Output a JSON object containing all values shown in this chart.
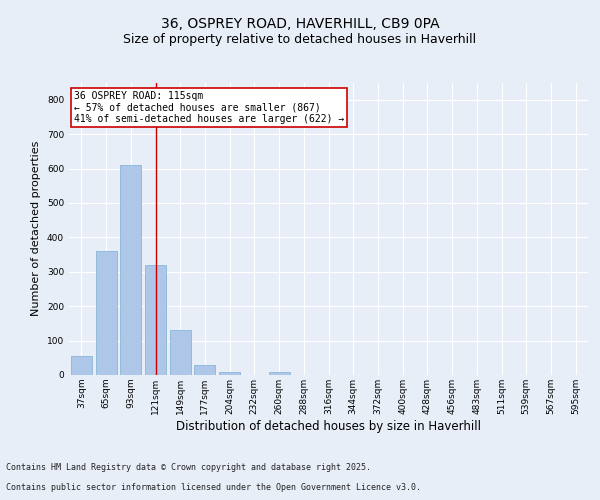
{
  "title_line1": "36, OSPREY ROAD, HAVERHILL, CB9 0PA",
  "title_line2": "Size of property relative to detached houses in Haverhill",
  "xlabel": "Distribution of detached houses by size in Haverhill",
  "ylabel": "Number of detached properties",
  "categories": [
    "37sqm",
    "65sqm",
    "93sqm",
    "121sqm",
    "149sqm",
    "177sqm",
    "204sqm",
    "232sqm",
    "260sqm",
    "288sqm",
    "316sqm",
    "344sqm",
    "372sqm",
    "400sqm",
    "428sqm",
    "456sqm",
    "483sqm",
    "511sqm",
    "539sqm",
    "567sqm",
    "595sqm"
  ],
  "values": [
    55,
    360,
    610,
    320,
    130,
    30,
    10,
    0,
    8,
    0,
    0,
    0,
    0,
    0,
    0,
    0,
    0,
    0,
    0,
    0,
    0
  ],
  "bar_color": "#aec6e8",
  "bar_edge_color": "#7aafd4",
  "background_color": "#e8eef8",
  "plot_bg_color": "#e8eef8",
  "vline_x_index": 3,
  "vline_color": "#cc0000",
  "annotation_text": "36 OSPREY ROAD: 115sqm\n← 57% of detached houses are smaller (867)\n41% of semi-detached houses are larger (622) →",
  "annotation_box_color": "#ffffff",
  "annotation_box_edge": "#cc0000",
  "ylim": [
    0,
    850
  ],
  "yticks": [
    0,
    100,
    200,
    300,
    400,
    500,
    600,
    700,
    800
  ],
  "footer_line1": "Contains HM Land Registry data © Crown copyright and database right 2025.",
  "footer_line2": "Contains public sector information licensed under the Open Government Licence v3.0.",
  "title_fontsize": 10,
  "subtitle_fontsize": 9,
  "axis_label_fontsize": 8,
  "tick_fontsize": 6.5,
  "annotation_fontsize": 7,
  "footer_fontsize": 6
}
